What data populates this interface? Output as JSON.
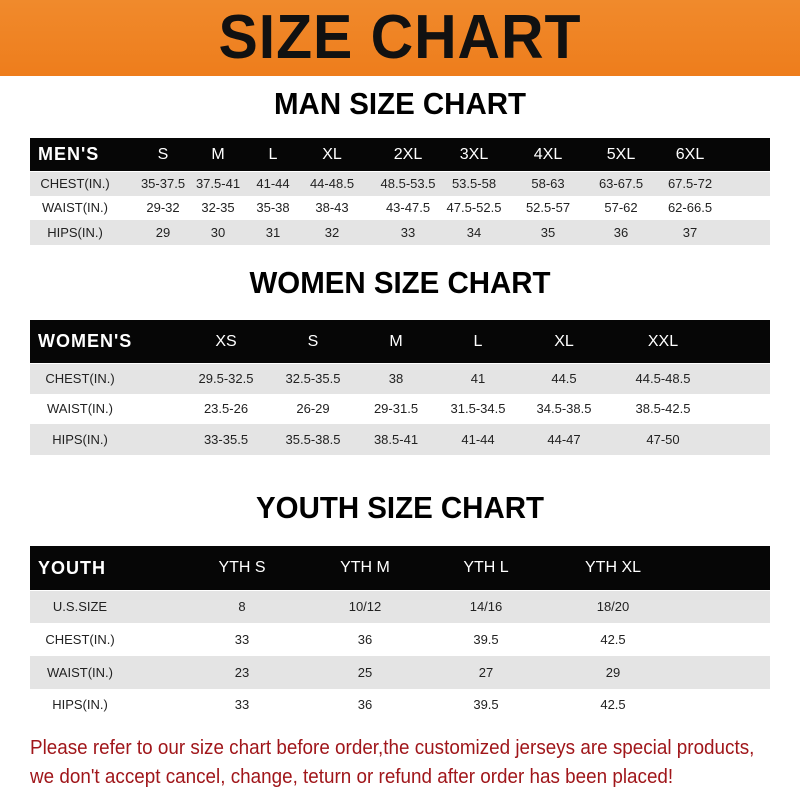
{
  "banner_title": "SIZE CHART",
  "men": {
    "title": "MAN SIZE CHART",
    "header_label": "MEN'S",
    "sizes": [
      "S",
      "M",
      "L",
      "XL",
      "2XL",
      "3XL",
      "4XL",
      "5XL",
      "6XL"
    ],
    "rows": [
      {
        "label": "CHEST(IN.)",
        "values": [
          "35-37.5",
          "37.5-41",
          "41-44",
          "44-48.5",
          "48.5-53.5",
          "53.5-58",
          "58-63",
          "63-67.5",
          "67.5-72"
        ]
      },
      {
        "label": "WAIST(IN.)",
        "values": [
          "29-32",
          "32-35",
          "35-38",
          "38-43",
          "43-47.5",
          "47.5-52.5",
          "52.5-57",
          "57-62",
          "62-66.5"
        ]
      },
      {
        "label": "HIPS(IN.)",
        "values": [
          "29",
          "30",
          "31",
          "32",
          "33",
          "34",
          "35",
          "36",
          "37"
        ]
      }
    ]
  },
  "women": {
    "title": "WOMEN SIZE CHART",
    "header_label": "WOMEN'S",
    "sizes": [
      "XS",
      "S",
      "M",
      "L",
      "XL",
      "XXL"
    ],
    "rows": [
      {
        "label": "CHEST(IN.)",
        "values": [
          "29.5-32.5",
          "32.5-35.5",
          "38",
          "41",
          "44.5",
          "44.5-48.5"
        ]
      },
      {
        "label": "WAIST(IN.)",
        "values": [
          "23.5-26",
          "26-29",
          "29-31.5",
          "31.5-34.5",
          "34.5-38.5",
          "38.5-42.5"
        ]
      },
      {
        "label": "HIPS(IN.)",
        "values": [
          "33-35.5",
          "35.5-38.5",
          "38.5-41",
          "41-44",
          "44-47",
          "47-50"
        ]
      }
    ]
  },
  "youth": {
    "title": "YOUTH SIZE CHART",
    "header_label": "YOUTH",
    "sizes": [
      "YTH S",
      "YTH M",
      "YTH L",
      "YTH XL"
    ],
    "rows": [
      {
        "label": "U.S.SIZE",
        "values": [
          "8",
          "10/12",
          "14/16",
          "18/20"
        ]
      },
      {
        "label": "CHEST(IN.)",
        "values": [
          "33",
          "36",
          "39.5",
          "42.5"
        ]
      },
      {
        "label": "WAIST(IN.)",
        "values": [
          "23",
          "25",
          "27",
          "29"
        ]
      },
      {
        "label": "HIPS(IN.)",
        "values": [
          "33",
          "36",
          "39.5",
          "42.5"
        ]
      }
    ]
  },
  "note": {
    "line1": "Please refer to our size chart before order,the customized jerseys are special products,",
    "line2": "we don't accept cancel, change, teturn or refund after order has been placed!"
  },
  "colors": {
    "banner": "#ef821f",
    "header_row": "#060606",
    "stripe": "#e4e4e4",
    "note": "#a0161a"
  }
}
